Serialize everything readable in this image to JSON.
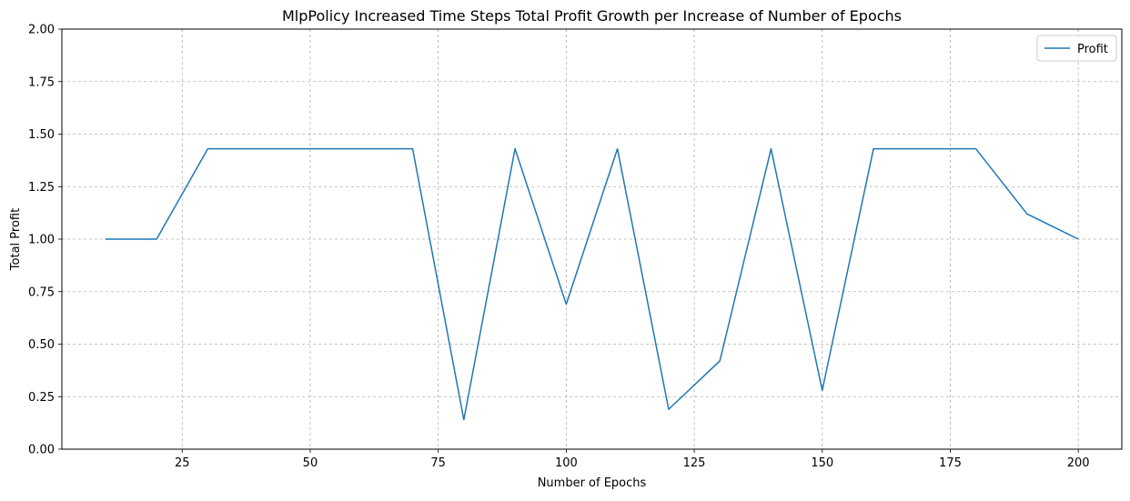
{
  "chart_data": {
    "type": "line",
    "title": "MlpPolicy Increased Time Steps Total Profit Growth per Increase of Number of Epochs",
    "xlabel": "Number of Epochs",
    "ylabel": "Total Profit",
    "xlim": [
      1.5,
      208.5
    ],
    "ylim": [
      0,
      2
    ],
    "xticks": [
      25,
      50,
      75,
      100,
      125,
      150,
      175,
      200
    ],
    "xtick_labels": [
      "25",
      "50",
      "75",
      "100",
      "125",
      "150",
      "175",
      "200"
    ],
    "yticks": [
      0,
      0.25,
      0.5,
      0.75,
      1.0,
      1.25,
      1.5,
      1.75,
      2.0
    ],
    "ytick_labels": [
      "0.00",
      "0.25",
      "0.50",
      "0.75",
      "1.00",
      "1.25",
      "1.50",
      "1.75",
      "2.00"
    ],
    "grid": true,
    "grid_style": "dashed",
    "legend_position": "top-right",
    "x": [
      10,
      20,
      30,
      40,
      50,
      60,
      70,
      80,
      90,
      100,
      110,
      120,
      130,
      140,
      150,
      160,
      170,
      180,
      190,
      200
    ],
    "series": [
      {
        "name": "Profit",
        "color": "#1f77b4",
        "values": [
          1.0,
          1.0,
          1.43,
          1.43,
          1.43,
          1.43,
          1.43,
          0.14,
          1.43,
          0.69,
          1.43,
          0.19,
          0.42,
          1.43,
          0.28,
          1.43,
          1.43,
          1.43,
          1.12,
          1.0
        ]
      }
    ]
  }
}
